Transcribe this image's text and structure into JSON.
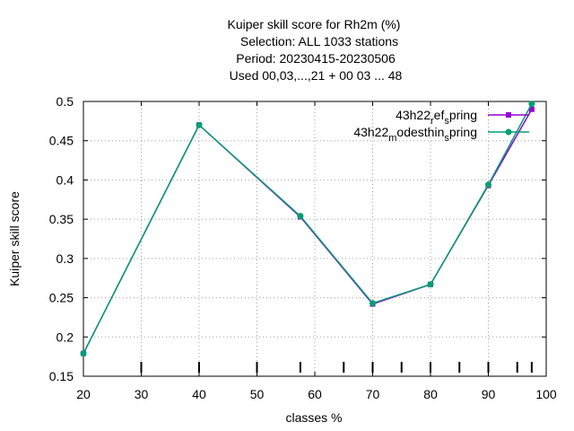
{
  "chart_data": {
    "type": "line",
    "title_lines": [
      "Kuiper skill score  for Rh2m (%)",
      "Selection: ALL   1033 stations",
      "Period: 20230415-20230506",
      "Used  00,03,...,21  + 00 03 ... 48"
    ],
    "xlabel": "classes %",
    "ylabel": "Kuiper skill score",
    "xlim": [
      20,
      100
    ],
    "ylim": [
      0.15,
      0.5
    ],
    "xticks": [
      20,
      30,
      40,
      50,
      60,
      70,
      80,
      90,
      100
    ],
    "xtick_labels": [
      "20",
      "30",
      "40",
      "50",
      "60",
      "70",
      "80",
      "90",
      "100"
    ],
    "yticks": [
      0.15,
      0.2,
      0.25,
      0.3,
      0.35,
      0.4,
      0.45,
      0.5
    ],
    "ytick_labels": [
      "0.15",
      "0.2",
      "0.25",
      "0.3",
      "0.35",
      "0.4",
      "0.45",
      "0.5"
    ],
    "class_marks": [
      30,
      40,
      50,
      57.5,
      65,
      70,
      75,
      80,
      85,
      90,
      95,
      97.5
    ],
    "grid": true,
    "legend_position": "top-right",
    "series": [
      {
        "name_parts": [
          "43h22",
          "r",
          "ef",
          "s",
          "pring"
        ],
        "color": "#9400d3",
        "marker": "square",
        "x": [
          20,
          40,
          57.5,
          70,
          80,
          90,
          97.5
        ],
        "y": [
          0.179,
          0.47,
          0.353,
          0.242,
          0.267,
          0.393,
          0.49
        ]
      },
      {
        "name_parts": [
          "43h22",
          "m",
          "odesthin",
          "s",
          "pring"
        ],
        "color": "#009e73",
        "marker": "circle",
        "x": [
          20,
          40,
          57.5,
          70,
          80,
          90,
          97.5
        ],
        "y": [
          0.179,
          0.47,
          0.354,
          0.243,
          0.267,
          0.394,
          0.497
        ]
      }
    ]
  }
}
